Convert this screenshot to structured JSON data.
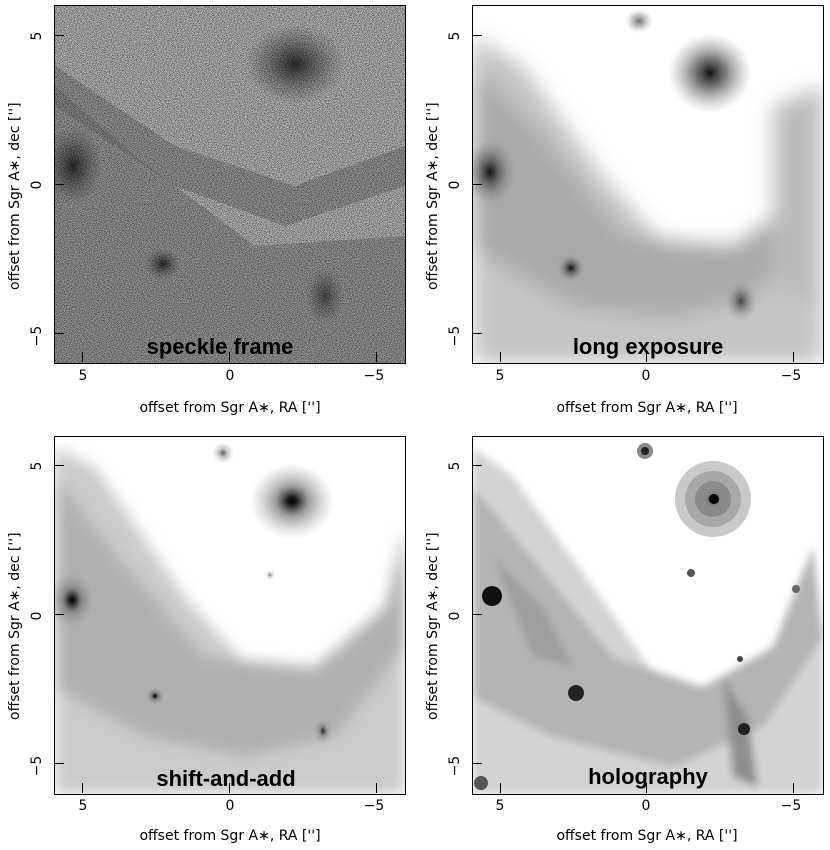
{
  "panels": [
    {
      "label": "speckle frame",
      "xlabel": "offset from Sgr A∗, RA ['']",
      "ylabel": "offset from Sgr A∗, dec ['']",
      "xticks": [
        "5",
        "0",
        "−5"
      ],
      "yticks": [
        "5",
        "0",
        "−5"
      ]
    },
    {
      "label": "long exposure",
      "xlabel": "offset from Sgr A∗, RA ['']",
      "ylabel": "offset from Sgr A∗, dec ['']",
      "xticks": [
        "5",
        "0",
        "−5"
      ],
      "yticks": [
        "5",
        "0",
        "−5"
      ]
    },
    {
      "label": "shift-and-add",
      "xlabel": "offset from Sgr A∗, RA ['']",
      "ylabel": "offset from Sgr A∗, dec ['']",
      "xticks": [
        "5",
        "0",
        "−5"
      ],
      "yticks": [
        "5",
        "0",
        "−5"
      ]
    },
    {
      "label": "holography",
      "xlabel": "offset from Sgr A∗, RA ['']",
      "ylabel": "offset from Sgr A∗, dec ['']",
      "xticks": [
        "5",
        "0",
        "−5"
      ],
      "yticks": [
        "5",
        "0",
        "−5"
      ]
    }
  ],
  "colors": {
    "background": "#ffffff",
    "frame": "#000000",
    "star": "#111111",
    "nebula": "#555555"
  }
}
